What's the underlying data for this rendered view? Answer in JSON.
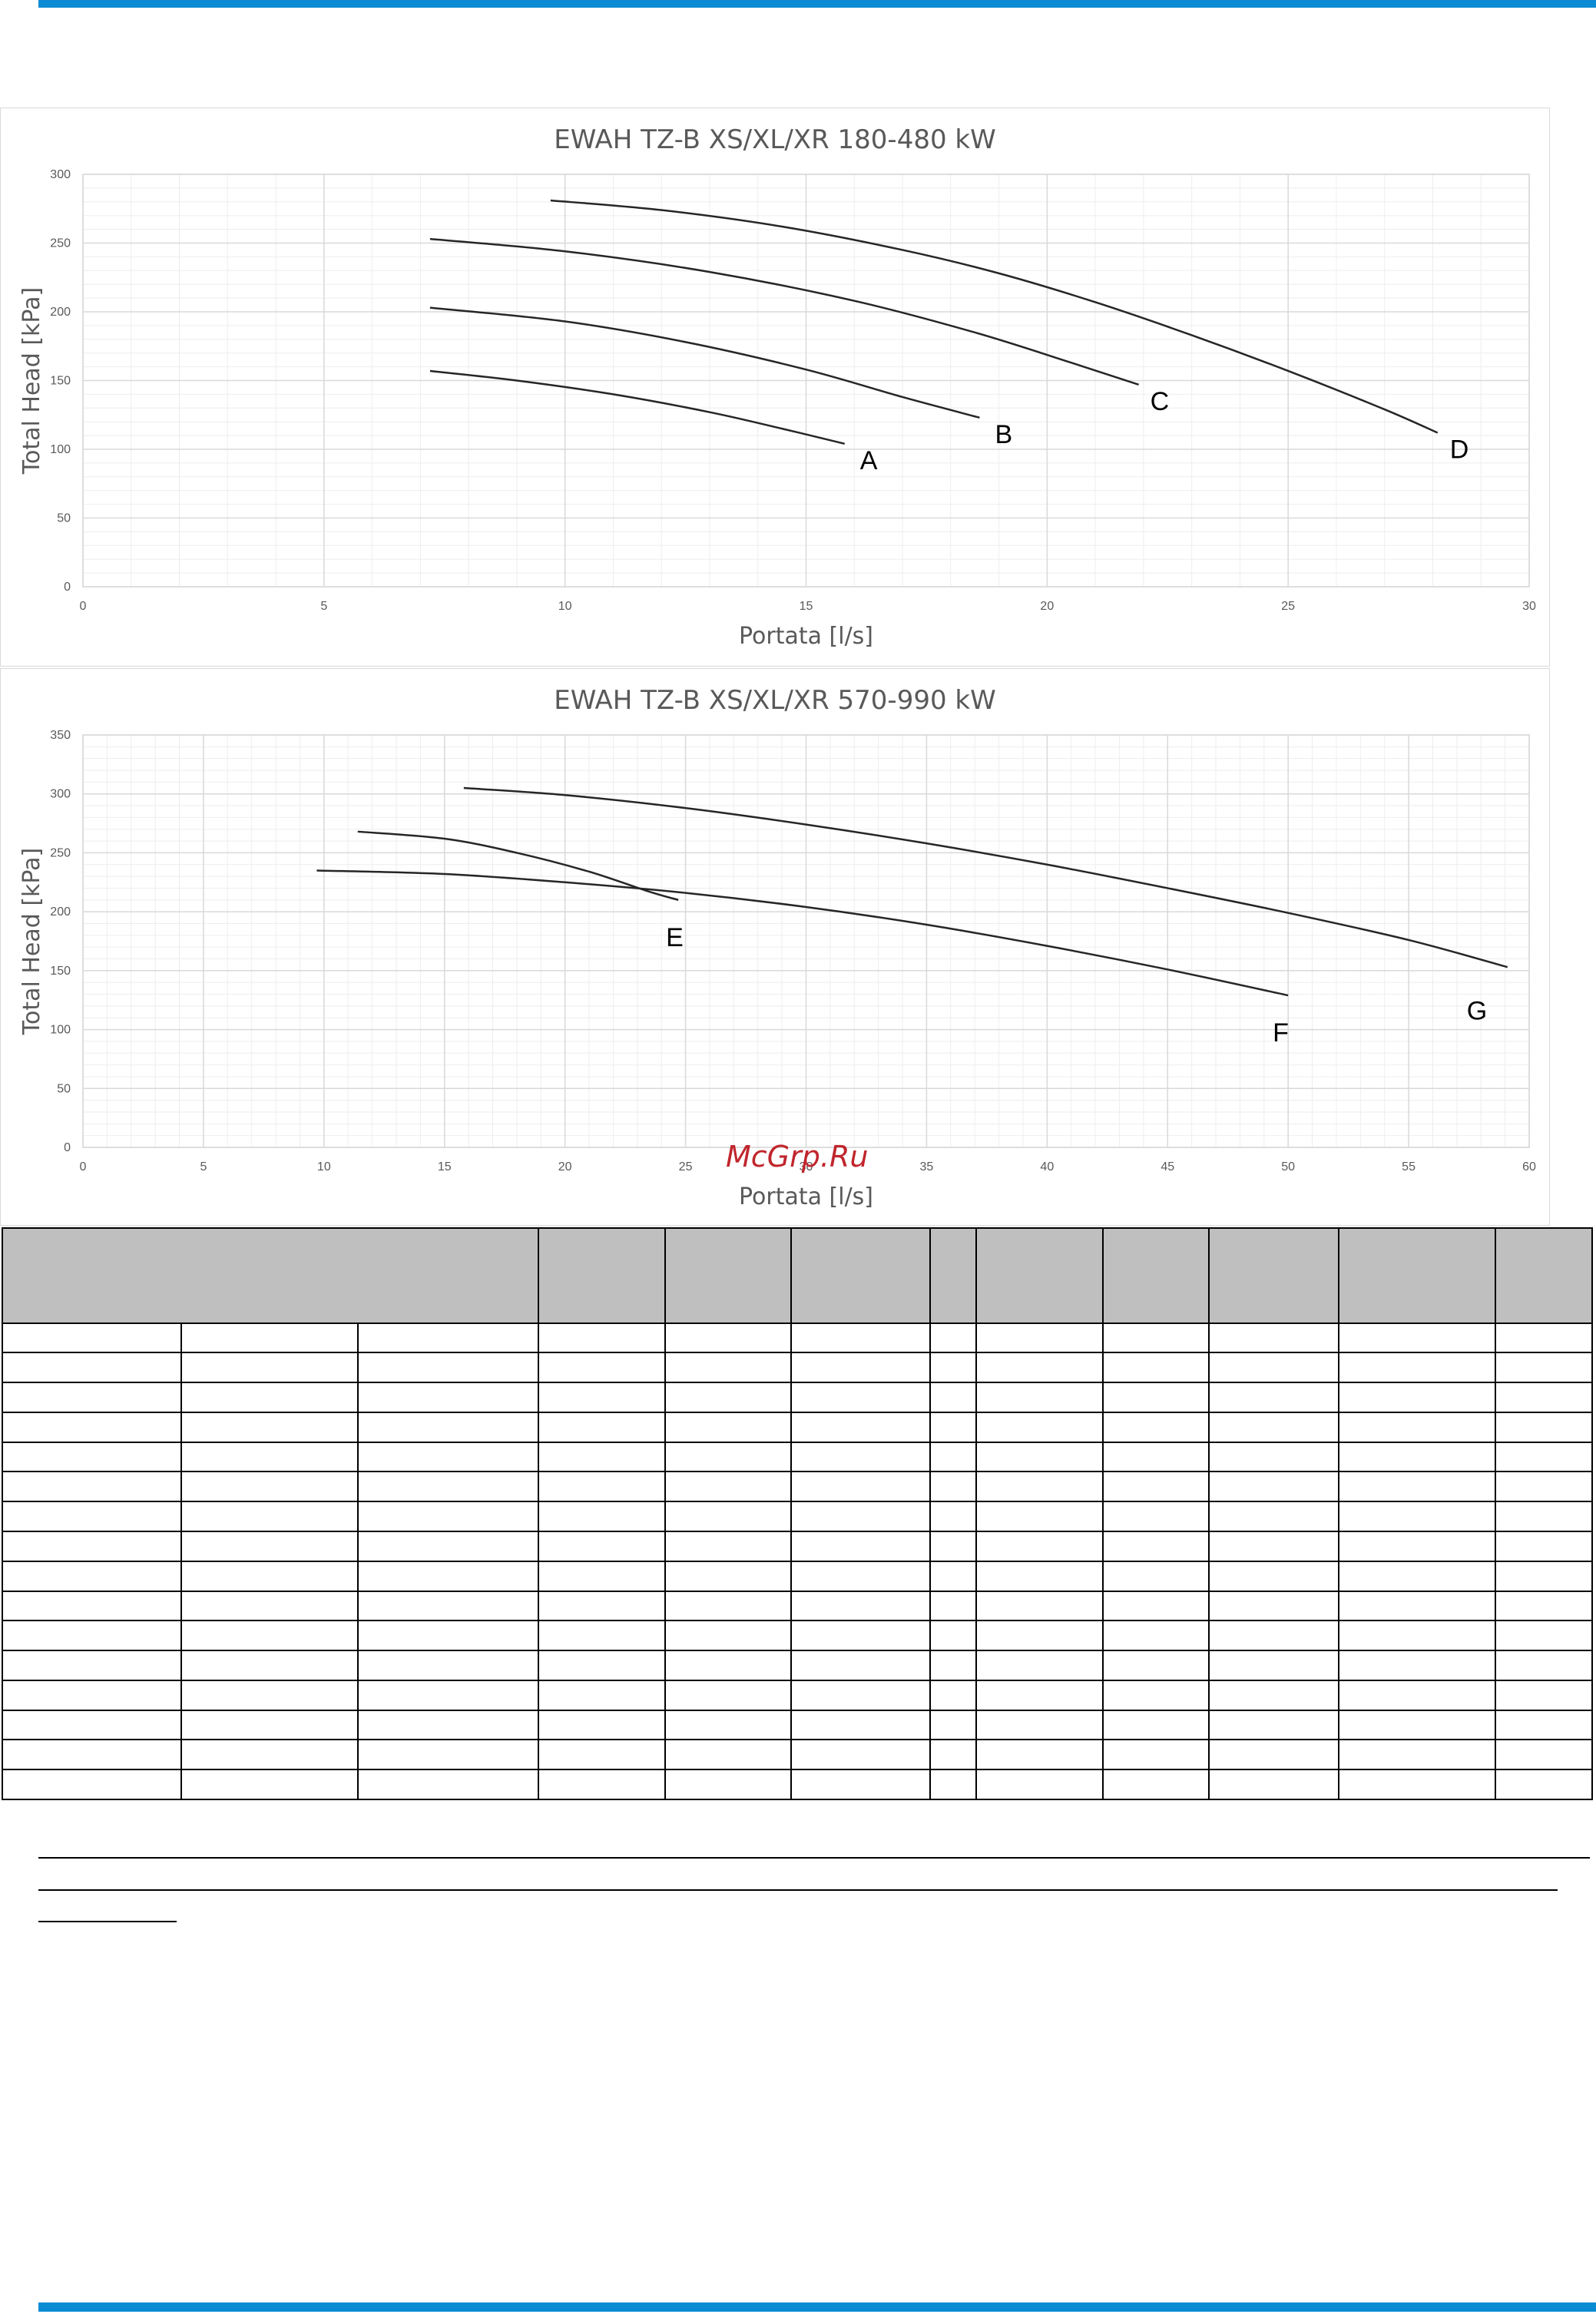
{
  "colors": {
    "accent_bar": "#0a8bd4",
    "curve": "#262626",
    "grid_major": "#d9d9d9",
    "grid_minor": "#eeeeee",
    "table_header": "#bfbfbf"
  },
  "charts": [
    {
      "id": "chart1",
      "title": "EWAH TZ-B XS/XL/XR 180-480 kW",
      "xlabel": "Portata [l/s]",
      "ylabel": "Total Head [kPa]",
      "xlim": [
        0,
        30
      ],
      "ylim": [
        0,
        300
      ],
      "xticks": [
        "0",
        "5",
        "10",
        "15",
        "20",
        "25",
        "30"
      ],
      "yticks": [
        "0",
        "50",
        "100",
        "150",
        "200",
        "250",
        "300"
      ]
    },
    {
      "id": "chart2",
      "title": "EWAH TZ-B XS/XL/XR 570-990 kW",
      "xlabel": "Portata [l/s]",
      "ylabel": "Total Head [kPa]",
      "xlim": [
        0,
        60
      ],
      "ylim": [
        0,
        350
      ],
      "xticks": [
        "0",
        "5",
        "10",
        "15",
        "20",
        "25",
        "30",
        "35",
        "40",
        "45",
        "50",
        "55",
        "60"
      ],
      "yticks": [
        "0",
        "50",
        "100",
        "150",
        "200",
        "250",
        "300",
        "350"
      ]
    }
  ],
  "chart_data": [
    {
      "type": "line",
      "title": "EWAH TZ-B XS/XL/XR 180-480 kW",
      "xlabel": "Portata [l/s]",
      "ylabel": "Total Head [kPa]",
      "xlim": [
        0,
        30
      ],
      "ylim": [
        0,
        300
      ],
      "grid": true,
      "series": [
        {
          "name": "A",
          "x": [
            7.2,
            9,
            11,
            13,
            14.5,
            15.8
          ],
          "y": [
            157,
            150,
            140,
            127,
            115,
            104
          ]
        },
        {
          "name": "B",
          "x": [
            7.2,
            10,
            12.5,
            15,
            17,
            18.6
          ],
          "y": [
            203,
            193,
            178,
            158,
            138,
            123
          ]
        },
        {
          "name": "C",
          "x": [
            7.2,
            10,
            13,
            16,
            18.5,
            20.5,
            21.9
          ],
          "y": [
            253,
            244,
            229,
            208,
            185,
            163,
            147
          ]
        },
        {
          "name": "D",
          "x": [
            9.7,
            12,
            14.5,
            17,
            19,
            21,
            23,
            25,
            27,
            28.1
          ],
          "y": [
            281,
            274,
            262,
            245,
            228,
            207,
            183,
            157,
            129,
            112
          ]
        }
      ]
    },
    {
      "type": "line",
      "title": "EWAH TZ-B XS/XL/XR 570-990 kW",
      "xlabel": "Portata [l/s]",
      "ylabel": "Total Head [kPa]",
      "xlim": [
        0,
        60
      ],
      "ylim": [
        0,
        350
      ],
      "grid": true,
      "series": [
        {
          "name": "E",
          "x": [
            11.4,
            15,
            18,
            21,
            23.5,
            24.7
          ],
          "y": [
            268,
            262,
            250,
            234,
            217,
            210
          ]
        },
        {
          "name": "F",
          "x": [
            9.7,
            15,
            20,
            25,
            30,
            35,
            40,
            45,
            50
          ],
          "y": [
            235,
            232,
            225,
            216,
            204,
            189,
            171,
            151,
            129
          ]
        },
        {
          "name": "G",
          "x": [
            15.8,
            20,
            25,
            30,
            35,
            40,
            45,
            50,
            55,
            59.1
          ],
          "y": [
            305,
            299,
            288,
            274,
            258,
            240,
            220,
            199,
            176,
            153
          ]
        }
      ]
    }
  ],
  "watermark": "McGrp.Ru",
  "table": {
    "header_cells": 11,
    "rows": 16,
    "first_group_subcolumns": 3
  }
}
